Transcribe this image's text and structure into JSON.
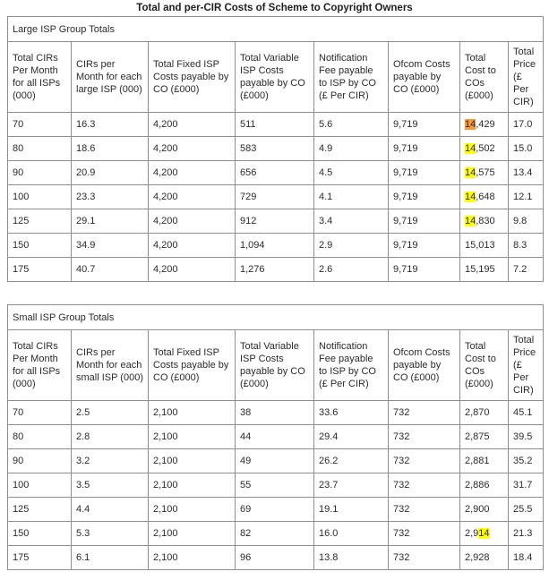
{
  "title": "Total and per-CIR Costs of Scheme to Copyright Owners",
  "find_highlight": {
    "query": "14",
    "match_color": "#ffff00",
    "active_match_color": "#ff9632"
  },
  "chart_data": [
    {
      "type": "table",
      "caption": "Large ISP Group Totals",
      "columns": [
        "Total CIRs Per Month for all ISPs (000)",
        "CIRs per Month for each large ISP (000)",
        "Total Fixed ISP Costs payable by CO (£000)",
        "Total Variable ISP Costs payable by CO (£000)",
        "Notification Fee payable to ISP by CO (£ Per CIR)",
        "Ofcom Costs payable by CO (£000)",
        "Total Cost to COs (£000)",
        "Total Price (£ Per CIR)"
      ],
      "rows": [
        [
          "70",
          "16.3",
          "4,200",
          "511",
          "5.6",
          "9,719",
          "14,429",
          "17.0"
        ],
        [
          "80",
          "18.6",
          "4,200",
          "583",
          "4.9",
          "9,719",
          "14,502",
          "15.0"
        ],
        [
          "90",
          "20.9",
          "4,200",
          "656",
          "4.5",
          "9,719",
          "14,575",
          "13.4"
        ],
        [
          "100",
          "23.3",
          "4,200",
          "729",
          "4.1",
          "9,719",
          "14,648",
          "12.1"
        ],
        [
          "125",
          "29.1",
          "4,200",
          "912",
          "3.4",
          "9,719",
          "14,830",
          "9.8"
        ],
        [
          "150",
          "34.9",
          "4,200",
          "1,094",
          "2.9",
          "9,719",
          "15,013",
          "8.3"
        ],
        [
          "175",
          "40.7",
          "4,200",
          "1,276",
          "2.6",
          "9,719",
          "15,195",
          "7.2"
        ]
      ]
    },
    {
      "type": "table",
      "caption": "Small ISP Group Totals",
      "columns": [
        "Total CIRs Per Month for all ISPs (000)",
        "CIRs per Month for each small ISP (000)",
        "Total Fixed ISP Costs payable by CO (£000)",
        "Total Variable ISP Costs payable by CO (£000)",
        "Notification Fee payable to ISP by CO (£ Per CIR)",
        "Ofcom Costs payable by CO (£000)",
        "Total Cost to COs (£000)",
        "Total Price (£ Per CIR)"
      ],
      "rows": [
        [
          "70",
          "2.5",
          "2,100",
          "38",
          "33.6",
          "732",
          "2,870",
          "45.1"
        ],
        [
          "80",
          "2.8",
          "2,100",
          "44",
          "29.4",
          "732",
          "2,875",
          "39.5"
        ],
        [
          "90",
          "3.2",
          "2,100",
          "49",
          "26.2",
          "732",
          "2,881",
          "35.2"
        ],
        [
          "100",
          "3.5",
          "2,100",
          "55",
          "23.7",
          "732",
          "2,886",
          "31.7"
        ],
        [
          "125",
          "4.4",
          "2,100",
          "69",
          "19.1",
          "732",
          "2,900",
          "25.5"
        ],
        [
          "150",
          "5.3",
          "2,100",
          "82",
          "16.0",
          "732",
          "2,914",
          "21.3"
        ],
        [
          "175",
          "6.1",
          "2,100",
          "96",
          "13.8",
          "732",
          "2,928",
          "18.4"
        ]
      ]
    }
  ],
  "highlights": [
    {
      "table": 0,
      "row": 0,
      "col": 6,
      "text": "14",
      "start": 0,
      "active": true
    },
    {
      "table": 0,
      "row": 1,
      "col": 6,
      "text": "14",
      "start": 0,
      "active": false
    },
    {
      "table": 0,
      "row": 2,
      "col": 6,
      "text": "14",
      "start": 0,
      "active": false
    },
    {
      "table": 0,
      "row": 3,
      "col": 6,
      "text": "14",
      "start": 0,
      "active": false
    },
    {
      "table": 0,
      "row": 4,
      "col": 6,
      "text": "14",
      "start": 0,
      "active": false
    },
    {
      "table": 1,
      "row": 5,
      "col": 6,
      "text": "14",
      "start": 3,
      "active": false
    }
  ]
}
